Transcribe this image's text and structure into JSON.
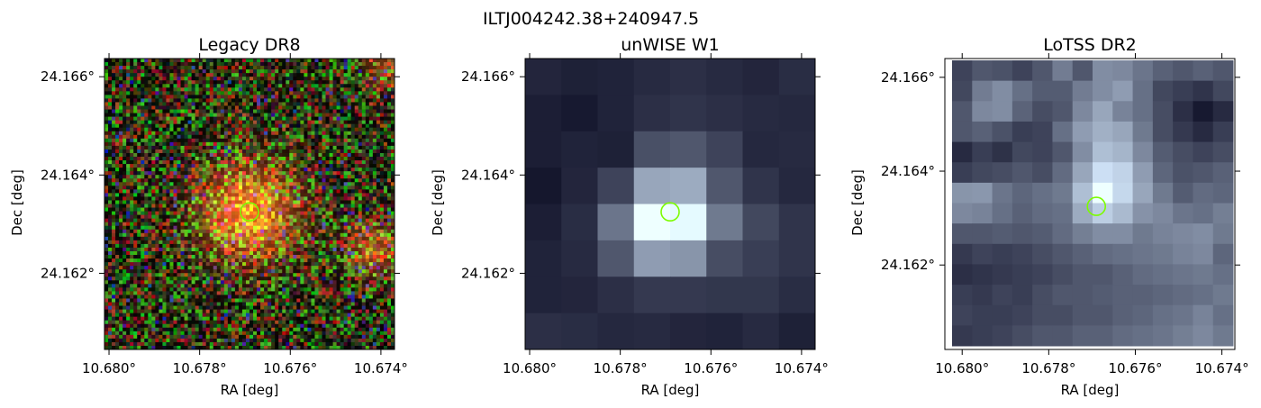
{
  "figure": {
    "title": "ILTJ004242.38+240947.5"
  },
  "marker": {
    "color": "#7CFC00",
    "shape": "circle"
  },
  "chart_data": [
    {
      "type": "heatmap",
      "title": "Legacy DR8",
      "xlabel": "RA [deg]",
      "ylabel": "Dec [deg]",
      "xlim": [
        10.6801,
        10.6737
      ],
      "ylim": [
        24.16045,
        24.16637
      ],
      "xticks": [
        {
          "value": 10.68,
          "label": "10.680°"
        },
        {
          "value": 10.678,
          "label": "10.678°"
        },
        {
          "value": 10.676,
          "label": "10.676°"
        },
        {
          "value": 10.674,
          "label": "10.674°"
        }
      ],
      "yticks": [
        {
          "value": 24.166,
          "label": "24.166°"
        },
        {
          "value": 24.164,
          "label": "24.164°"
        },
        {
          "value": 24.162,
          "label": "24.162°"
        }
      ],
      "colormap": "rgb-composite",
      "source_position": {
        "ra": 10.6769,
        "dec": 24.16325
      }
    },
    {
      "type": "heatmap",
      "title": "unWISE W1",
      "xlabel": "RA [deg]",
      "ylabel": "Dec [deg]",
      "xlim": [
        10.6801,
        10.6737
      ],
      "ylim": [
        24.16045,
        24.16637
      ],
      "xticks": [
        {
          "value": 10.68,
          "label": "10.680°"
        },
        {
          "value": 10.678,
          "label": "10.678°"
        },
        {
          "value": 10.676,
          "label": "10.676°"
        },
        {
          "value": 10.674,
          "label": "10.674°"
        }
      ],
      "yticks": [
        {
          "value": 24.166,
          "label": "24.166°"
        },
        {
          "value": 24.164,
          "label": "24.164°"
        },
        {
          "value": 24.162,
          "label": "24.162°"
        }
      ],
      "colormap": "bone",
      "source_position": {
        "ra": 10.6769,
        "dec": 24.16325
      },
      "grid": [
        [
          0.1,
          0.08,
          0.09,
          0.12,
          0.14,
          0.12,
          0.1,
          0.13
        ],
        [
          0.07,
          0.05,
          0.09,
          0.14,
          0.16,
          0.14,
          0.12,
          0.11
        ],
        [
          0.07,
          0.09,
          0.08,
          0.27,
          0.3,
          0.22,
          0.11,
          0.12
        ],
        [
          0.04,
          0.1,
          0.22,
          0.62,
          0.64,
          0.3,
          0.16,
          0.11
        ],
        [
          0.07,
          0.13,
          0.42,
          1.0,
          0.96,
          0.44,
          0.24,
          0.16
        ],
        [
          0.09,
          0.12,
          0.3,
          0.58,
          0.55,
          0.26,
          0.2,
          0.16
        ],
        [
          0.09,
          0.1,
          0.14,
          0.18,
          0.18,
          0.17,
          0.17,
          0.13
        ],
        [
          0.14,
          0.13,
          0.11,
          0.12,
          0.1,
          0.09,
          0.12,
          0.08
        ]
      ]
    },
    {
      "type": "heatmap",
      "title": "LoTSS DR2",
      "xlabel": "RA [deg]",
      "ylabel": "Dec [deg]",
      "xlim": [
        10.6804,
        10.6737
      ],
      "ylim": [
        24.1602,
        24.1664
      ],
      "xticks": [
        {
          "value": 10.68,
          "label": "10.680°"
        },
        {
          "value": 10.678,
          "label": "10.678°"
        },
        {
          "value": 10.676,
          "label": "10.676°"
        },
        {
          "value": 10.674,
          "label": "10.674°"
        }
      ],
      "yticks": [
        {
          "value": 24.166,
          "label": "24.166°"
        },
        {
          "value": 24.164,
          "label": "24.164°"
        },
        {
          "value": 24.162,
          "label": "24.162°"
        }
      ],
      "colormap": "bone",
      "source_position": {
        "ra": 10.6769,
        "dec": 24.16325
      },
      "grid": [
        [
          0.22,
          0.3,
          0.28,
          0.22,
          0.3,
          0.45,
          0.3,
          0.52,
          0.5,
          0.42,
          0.34,
          0.3,
          0.34,
          0.3
        ],
        [
          0.24,
          0.45,
          0.52,
          0.4,
          0.32,
          0.32,
          0.45,
          0.52,
          0.58,
          0.4,
          0.24,
          0.2,
          0.16,
          0.24
        ],
        [
          0.3,
          0.5,
          0.52,
          0.35,
          0.26,
          0.3,
          0.5,
          0.62,
          0.48,
          0.4,
          0.26,
          0.14,
          0.05,
          0.12
        ],
        [
          0.3,
          0.34,
          0.28,
          0.2,
          0.22,
          0.4,
          0.58,
          0.66,
          0.62,
          0.44,
          0.26,
          0.18,
          0.12,
          0.2
        ],
        [
          0.12,
          0.2,
          0.15,
          0.24,
          0.22,
          0.3,
          0.52,
          0.72,
          0.68,
          0.5,
          0.32,
          0.26,
          0.22,
          0.26
        ],
        [
          0.2,
          0.24,
          0.26,
          0.3,
          0.26,
          0.38,
          0.62,
          0.85,
          0.8,
          0.58,
          0.36,
          0.28,
          0.3,
          0.34
        ],
        [
          0.55,
          0.56,
          0.42,
          0.36,
          0.4,
          0.44,
          0.72,
          1.0,
          0.82,
          0.62,
          0.44,
          0.32,
          0.38,
          0.36
        ],
        [
          0.5,
          0.48,
          0.4,
          0.34,
          0.38,
          0.4,
          0.64,
          0.78,
          0.7,
          0.54,
          0.5,
          0.42,
          0.4,
          0.46
        ],
        [
          0.3,
          0.3,
          0.32,
          0.3,
          0.32,
          0.38,
          0.46,
          0.52,
          0.52,
          0.44,
          0.48,
          0.5,
          0.52,
          0.44
        ],
        [
          0.18,
          0.22,
          0.2,
          0.22,
          0.26,
          0.3,
          0.34,
          0.38,
          0.4,
          0.42,
          0.44,
          0.48,
          0.5,
          0.36
        ],
        [
          0.14,
          0.16,
          0.18,
          0.2,
          0.22,
          0.26,
          0.3,
          0.3,
          0.34,
          0.38,
          0.4,
          0.42,
          0.44,
          0.4
        ],
        [
          0.2,
          0.18,
          0.22,
          0.2,
          0.26,
          0.3,
          0.3,
          0.32,
          0.34,
          0.34,
          0.36,
          0.38,
          0.4,
          0.44
        ],
        [
          0.22,
          0.2,
          0.2,
          0.22,
          0.26,
          0.26,
          0.3,
          0.3,
          0.34,
          0.36,
          0.4,
          0.42,
          0.48,
          0.4
        ],
        [
          0.18,
          0.2,
          0.22,
          0.26,
          0.3,
          0.3,
          0.34,
          0.34,
          0.38,
          0.4,
          0.42,
          0.46,
          0.5,
          0.44
        ]
      ]
    }
  ]
}
